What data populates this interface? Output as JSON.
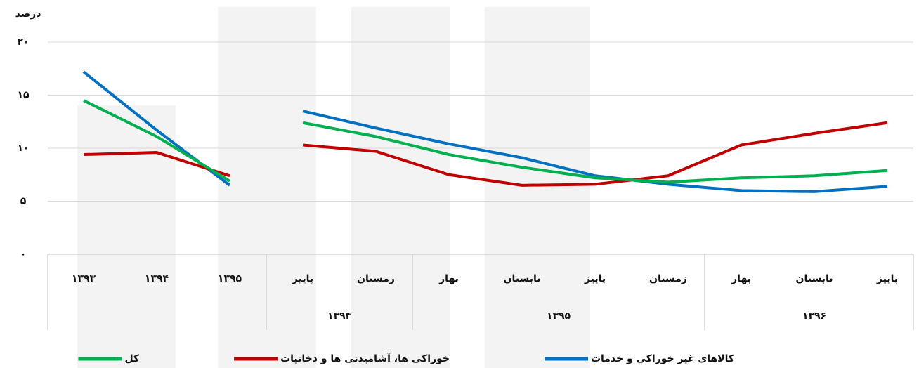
{
  "chart_data": {
    "type": "line",
    "y_axis_label": "درصد",
    "ylim": [
      0,
      20
    ],
    "yticks": [
      {
        "value": 0,
        "label": "۰"
      },
      {
        "value": 5,
        "label": "۵"
      },
      {
        "value": 10,
        "label": "۱۰"
      },
      {
        "value": 15,
        "label": "۱۵"
      },
      {
        "value": 20,
        "label": "۲۰"
      }
    ],
    "grid": true,
    "sections": [
      {
        "groups": [
          {
            "categories": [
              "۱۳۹۳",
              "۱۳۹۴",
              "۱۳۹۵"
            ]
          }
        ]
      },
      {
        "groups": [
          {
            "label": "۱۳۹۴",
            "categories": [
              "پاییز",
              "زمستان"
            ]
          },
          {
            "label": "۱۳۹۵",
            "categories": [
              "بهار",
              "تابستان",
              "پاییز",
              "زمستان"
            ]
          },
          {
            "label": "۱۳۹۶",
            "categories": [
              "بهار",
              "تابستان",
              "پاییز"
            ]
          }
        ]
      }
    ],
    "series": [
      {
        "name": "کالاهای غیر خوراکی و خدمات",
        "color": "#0070c0",
        "values": [
          17.2,
          11.7,
          6.5,
          13.5,
          11.9,
          10.4,
          9.1,
          7.4,
          6.6,
          6.0,
          5.9,
          6.4
        ]
      },
      {
        "name": "خوراکی ها، آشامیدنی ها و دخانیات",
        "color": "#c00000",
        "values": [
          9.4,
          9.6,
          7.4,
          10.3,
          9.7,
          7.5,
          6.5,
          6.6,
          7.4,
          10.3,
          11.4,
          12.4
        ]
      },
      {
        "name": "کل",
        "color": "#00b050",
        "values": [
          14.5,
          11.1,
          6.9,
          12.4,
          11.1,
          9.4,
          8.2,
          7.2,
          6.8,
          7.2,
          7.4,
          7.9
        ]
      }
    ],
    "legend": "bottom"
  }
}
